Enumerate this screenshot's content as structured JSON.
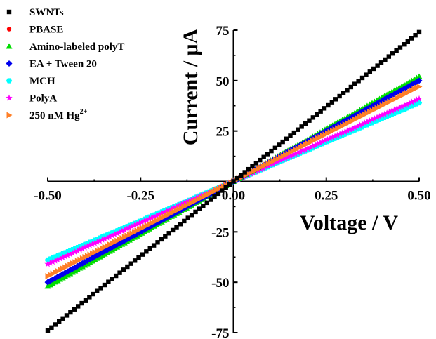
{
  "chart_data": {
    "type": "scatter",
    "xlabel": "Voltage / V",
    "ylabel": "Current / μA",
    "xlim": [
      -0.5,
      0.5
    ],
    "ylim": [
      -75,
      75
    ],
    "x_ticks": [
      "-0.50",
      "-0.25",
      "0.00",
      "0.25",
      "0.50"
    ],
    "y_ticks": [
      "75",
      "50",
      "25",
      "-25",
      "-50",
      "-75"
    ],
    "grid": false,
    "legend_position": "top-left",
    "series": [
      {
        "name": "SWNTs",
        "marker": "square",
        "color": "#000000",
        "x": [
          -0.5,
          -0.25,
          0,
          0.25,
          0.5
        ],
        "y": [
          -74,
          -37,
          0,
          37,
          74
        ]
      },
      {
        "name": "PBASE",
        "marker": "circle",
        "color": "#ff0000",
        "x": [
          -0.5,
          -0.25,
          0,
          0.25,
          0.5
        ],
        "y": [
          -50,
          -25,
          0,
          25,
          50
        ]
      },
      {
        "name": "Amino-labeled polyT",
        "marker": "triangle-up",
        "color": "#00dd00",
        "x": [
          -0.5,
          -0.25,
          0,
          0.25,
          0.5
        ],
        "y": [
          -52,
          -26,
          0,
          26,
          52
        ]
      },
      {
        "name": "EA + Tween 20",
        "marker": "diamond",
        "color": "#0000ee",
        "x": [
          -0.5,
          -0.25,
          0,
          0.25,
          0.5
        ],
        "y": [
          -50,
          -25,
          0,
          25,
          50
        ]
      },
      {
        "name": "MCH",
        "marker": "hexagon",
        "color": "#00ffff",
        "x": [
          -0.5,
          -0.25,
          0,
          0.25,
          0.5
        ],
        "y": [
          -39,
          -19.5,
          0,
          19.5,
          39
        ]
      },
      {
        "name": "PolyA",
        "marker": "star",
        "color": "#ff00ff",
        "x": [
          -0.5,
          -0.25,
          0,
          0.25,
          0.5
        ],
        "y": [
          -41,
          -20.5,
          0,
          20.5,
          41
        ]
      },
      {
        "name": "250 nM Hg",
        "name_superscript": "2+",
        "marker": "triangle-right",
        "color": "#ff7f27",
        "x": [
          -0.5,
          -0.25,
          0,
          0.25,
          0.5
        ],
        "y": [
          -47,
          -23.5,
          0,
          23.5,
          47
        ]
      }
    ]
  }
}
